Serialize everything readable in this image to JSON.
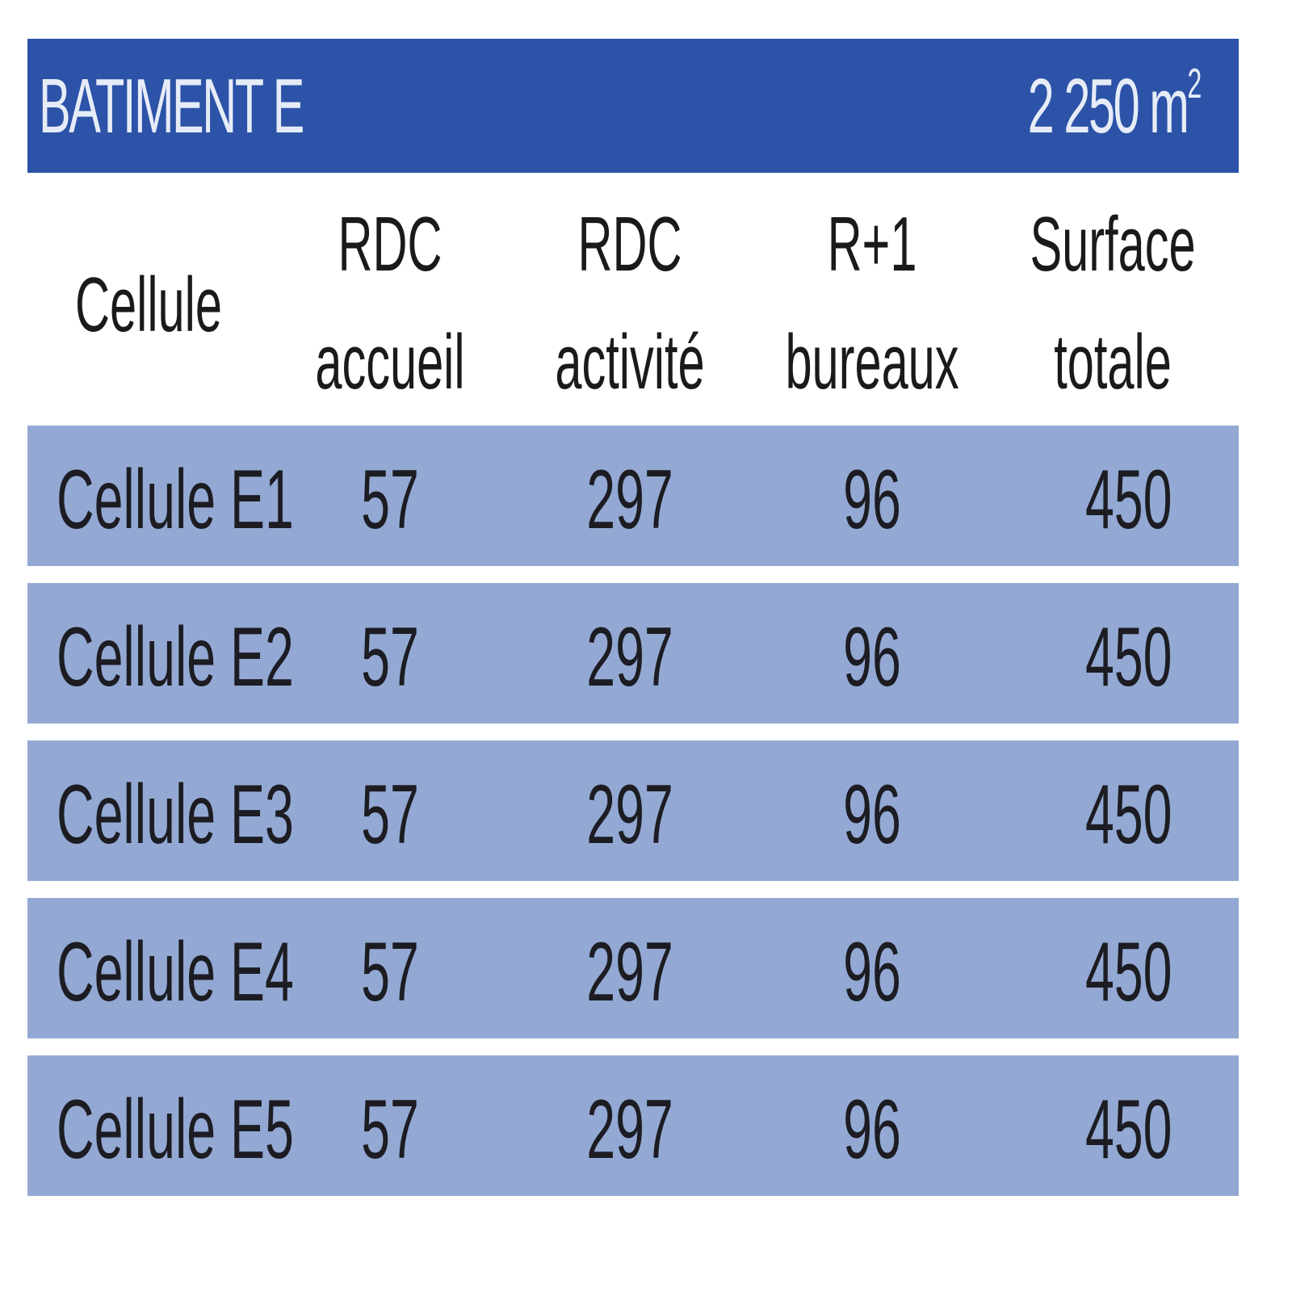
{
  "title": "BATIMENT E",
  "area": {
    "value": "2 250 m",
    "unit_sup": "2"
  },
  "colors": {
    "header_bg": "#2c53a8",
    "row_bg": "#93a9d4"
  },
  "columns": [
    {
      "line1": "Cellule",
      "line2": ""
    },
    {
      "line1": "RDC",
      "line2": "accueil"
    },
    {
      "line1": "RDC",
      "line2": "activité"
    },
    {
      "line1": "R+1",
      "line2": "bureaux"
    },
    {
      "line1": "Surface",
      "line2": "totale"
    }
  ],
  "rows": [
    [
      "Cellule E1",
      "57",
      "297",
      "96",
      "450"
    ],
    [
      "Cellule E2",
      "57",
      "297",
      "96",
      "450"
    ],
    [
      "Cellule E3",
      "57",
      "297",
      "96",
      "450"
    ],
    [
      "Cellule E4",
      "57",
      "297",
      "96",
      "450"
    ],
    [
      "Cellule E5",
      "57",
      "297",
      "96",
      "450"
    ]
  ]
}
